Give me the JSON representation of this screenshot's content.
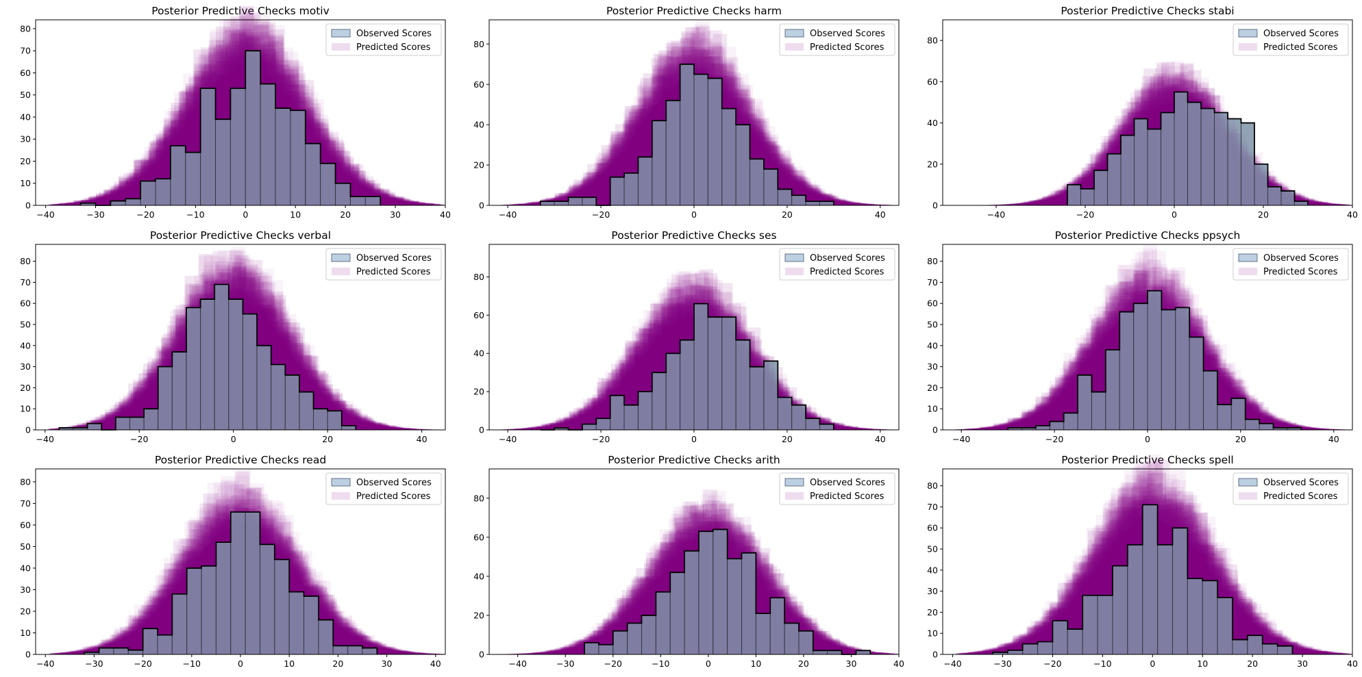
{
  "colors": {
    "observed_fill": "#7f93a8",
    "observed_edge": "#000000",
    "observed_legend_fill": "#bcd0e2",
    "predicted_fill": "#800080",
    "predicted_legend_fill": "#efdcef"
  },
  "legend": {
    "observed": "Observed Scores",
    "predicted": "Predicted Scores"
  },
  "chart_data": [
    {
      "type": "bar",
      "title": "Posterior Predictive Checks motiv",
      "xlim": [
        -42,
        40
      ],
      "ylim": [
        0,
        84
      ],
      "xticks": [
        -40,
        -30,
        -20,
        -10,
        0,
        10,
        20,
        30,
        40
      ],
      "yticks": [
        0,
        10,
        20,
        30,
        40,
        50,
        60,
        70,
        80
      ],
      "legend": "top-right",
      "grid": false,
      "bins": [
        -33,
        -30,
        -27,
        -24,
        -21,
        -18,
        -15,
        -12,
        -9,
        -6,
        -3,
        0,
        3,
        6,
        9,
        12,
        15,
        18,
        21,
        24,
        27
      ],
      "observed": [
        1,
        0,
        2,
        3,
        11,
        12,
        27,
        24,
        53,
        39,
        53,
        70,
        55,
        44,
        43,
        28,
        19,
        10,
        4,
        4
      ],
      "predicted_spread": 12
    },
    {
      "type": "bar",
      "title": "Posterior Predictive Checks harm",
      "xlim": [
        -44,
        44
      ],
      "ylim": [
        0,
        92
      ],
      "xticks": [
        -40,
        -20,
        0,
        20,
        40
      ],
      "yticks": [
        0,
        20,
        40,
        60,
        80
      ],
      "legend": "top-right",
      "grid": false,
      "bins": [
        -33,
        -30,
        -27,
        -24,
        -21,
        -18,
        -15,
        -12,
        -9,
        -6,
        -3,
        0,
        3,
        6,
        9,
        12,
        15,
        18,
        21,
        24,
        27,
        30
      ],
      "observed": [
        2,
        2,
        4,
        4,
        0,
        14,
        16,
        24,
        42,
        52,
        70,
        65,
        63,
        48,
        40,
        23,
        18,
        8,
        5,
        2,
        2
      ],
      "predicted_spread": 12
    },
    {
      "type": "bar",
      "title": "Posterior Predictive Checks stabi",
      "xlim": [
        -52,
        40
      ],
      "ylim": [
        0,
        90
      ],
      "xticks": [
        -40,
        -20,
        0,
        20,
        40
      ],
      "yticks": [
        0,
        20,
        40,
        60,
        80
      ],
      "legend": "top-right",
      "grid": false,
      "bins": [
        -24,
        -21,
        -18,
        -15,
        -12,
        -9,
        -6,
        -3,
        0,
        3,
        6,
        9,
        12,
        15,
        18,
        21,
        24,
        27,
        30
      ],
      "observed": [
        10,
        8,
        17,
        25,
        34,
        42,
        37,
        45,
        55,
        50,
        47,
        45,
        42,
        40,
        20,
        9,
        7,
        2
      ],
      "predicted_spread": 12
    },
    {
      "type": "bar",
      "title": "Posterior Predictive Checks verbal",
      "xlim": [
        -42,
        45
      ],
      "ylim": [
        0,
        88
      ],
      "xticks": [
        -40,
        -20,
        0,
        20,
        40
      ],
      "yticks": [
        0,
        10,
        20,
        30,
        40,
        50,
        60,
        70,
        80
      ],
      "legend": "top-right",
      "grid": false,
      "bins": [
        -37,
        -34,
        -31,
        -28,
        -25,
        -22,
        -19,
        -16,
        -13,
        -10,
        -7,
        -4,
        -1,
        2,
        5,
        8,
        11,
        14,
        17,
        20,
        23,
        26
      ],
      "observed": [
        1,
        1,
        3,
        0,
        6,
        6,
        10,
        30,
        37,
        58,
        62,
        69,
        62,
        55,
        40,
        31,
        26,
        18,
        10,
        9,
        2
      ],
      "predicted_spread": 12
    },
    {
      "type": "bar",
      "title": "Posterior Predictive Checks ses",
      "xlim": [
        -44,
        44
      ],
      "ylim": [
        0,
        97
      ],
      "xticks": [
        -40,
        -20,
        0,
        20,
        40
      ],
      "yticks": [
        0,
        20,
        40,
        60,
        80
      ],
      "legend": "top-right",
      "grid": false,
      "bins": [
        -33,
        -30,
        -27,
        -24,
        -21,
        -18,
        -15,
        -12,
        -9,
        -6,
        -3,
        0,
        3,
        6,
        9,
        12,
        15,
        18,
        21,
        24,
        27,
        30
      ],
      "observed": [
        0,
        1,
        0,
        3,
        6,
        18,
        13,
        20,
        30,
        40,
        47,
        66,
        59,
        59,
        47,
        33,
        36,
        17,
        13,
        6,
        3
      ],
      "predicted_spread": 12
    },
    {
      "type": "bar",
      "title": "Posterior Predictive Checks ppsych",
      "xlim": [
        -44,
        44
      ],
      "ylim": [
        0,
        88
      ],
      "xticks": [
        -40,
        -20,
        0,
        20,
        40
      ],
      "yticks": [
        0,
        10,
        20,
        30,
        40,
        50,
        60,
        70,
        80
      ],
      "legend": "top-right",
      "grid": false,
      "bins": [
        -30,
        -27,
        -24,
        -21,
        -18,
        -15,
        -12,
        -9,
        -6,
        -3,
        0,
        3,
        6,
        9,
        12,
        15,
        18,
        21,
        24,
        27,
        30,
        33
      ],
      "observed": [
        1,
        1,
        2,
        4,
        8,
        26,
        18,
        38,
        56,
        60,
        66,
        57,
        58,
        44,
        28,
        12,
        15,
        5,
        3,
        1,
        1
      ],
      "predicted_spread": 12
    },
    {
      "type": "bar",
      "title": "Posterior Predictive Checks read",
      "xlim": [
        -42,
        42
      ],
      "ylim": [
        0,
        86
      ],
      "xticks": [
        -40,
        -30,
        -20,
        -10,
        0,
        10,
        20,
        30,
        40
      ],
      "yticks": [
        0,
        10,
        20,
        30,
        40,
        50,
        60,
        70,
        80
      ],
      "legend": "top-right",
      "grid": false,
      "bins": [
        -32,
        -29,
        -26,
        -23,
        -20,
        -17,
        -14,
        -11,
        -8,
        -5,
        -2,
        1,
        4,
        7,
        10,
        13,
        16,
        19,
        22,
        25,
        28
      ],
      "observed": [
        1,
        3,
        3,
        2,
        12,
        9,
        28,
        40,
        41,
        52,
        66,
        66,
        51,
        44,
        29,
        27,
        16,
        4,
        4,
        3
      ],
      "predicted_spread": 12
    },
    {
      "type": "bar",
      "title": "Posterior Predictive Checks arith",
      "xlim": [
        -46,
        40
      ],
      "ylim": [
        0,
        95
      ],
      "xticks": [
        -40,
        -30,
        -20,
        -10,
        0,
        10,
        20,
        30,
        40
      ],
      "yticks": [
        0,
        20,
        40,
        60,
        80
      ],
      "legend": "top-right",
      "grid": false,
      "bins": [
        -26,
        -23,
        -20,
        -17,
        -14,
        -11,
        -8,
        -5,
        -2,
        1,
        4,
        7,
        10,
        13,
        16,
        19,
        22,
        25,
        28,
        31,
        34
      ],
      "observed": [
        6,
        5,
        12,
        16,
        20,
        32,
        42,
        53,
        63,
        64,
        49,
        52,
        21,
        29,
        16,
        12,
        2,
        2,
        0,
        2
      ],
      "predicted_spread": 12
    },
    {
      "type": "bar",
      "title": "Posterior Predictive Checks spell",
      "xlim": [
        -42,
        40
      ],
      "ylim": [
        0,
        88
      ],
      "xticks": [
        -40,
        -30,
        -20,
        -10,
        0,
        10,
        20,
        30,
        40
      ],
      "yticks": [
        0,
        10,
        20,
        30,
        40,
        50,
        60,
        70,
        80
      ],
      "legend": "top-right",
      "grid": false,
      "bins": [
        -32,
        -29,
        -26,
        -23,
        -20,
        -17,
        -14,
        -11,
        -8,
        -5,
        -2,
        1,
        4,
        7,
        10,
        13,
        16,
        19,
        22,
        25,
        28
      ],
      "observed": [
        1,
        2,
        5,
        6,
        16,
        12,
        28,
        28,
        42,
        52,
        71,
        52,
        60,
        36,
        35,
        27,
        7,
        9,
        5,
        4
      ],
      "predicted_spread": 12
    }
  ]
}
